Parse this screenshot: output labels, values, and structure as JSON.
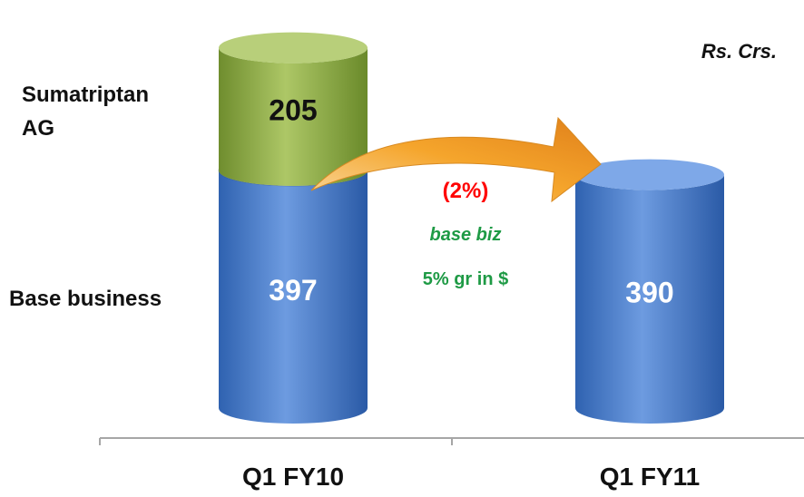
{
  "chart_data": {
    "type": "bar",
    "stacked": true,
    "unit": "Rs. Crs.",
    "categories": [
      "Q1 FY10",
      "Q1 FY11"
    ],
    "series": [
      {
        "name": "Base business",
        "values": [
          397,
          390
        ],
        "color": "#4a7fcf"
      },
      {
        "name": "Sumatriptan AG",
        "values": [
          205,
          null
        ],
        "color": "#8eac46"
      }
    ],
    "series_label_lines": {
      "sumatriptan": [
        "Sumatriptan",
        "AG"
      ],
      "base": [
        "Base business"
      ]
    },
    "annotation": {
      "change": "(2%)",
      "change_color": "#ff0000",
      "line1": "base biz",
      "line2": "5% gr in $",
      "note_color": "#1e9a45",
      "arrow_color": "#f4a020"
    },
    "grid": false,
    "legend": "none"
  }
}
